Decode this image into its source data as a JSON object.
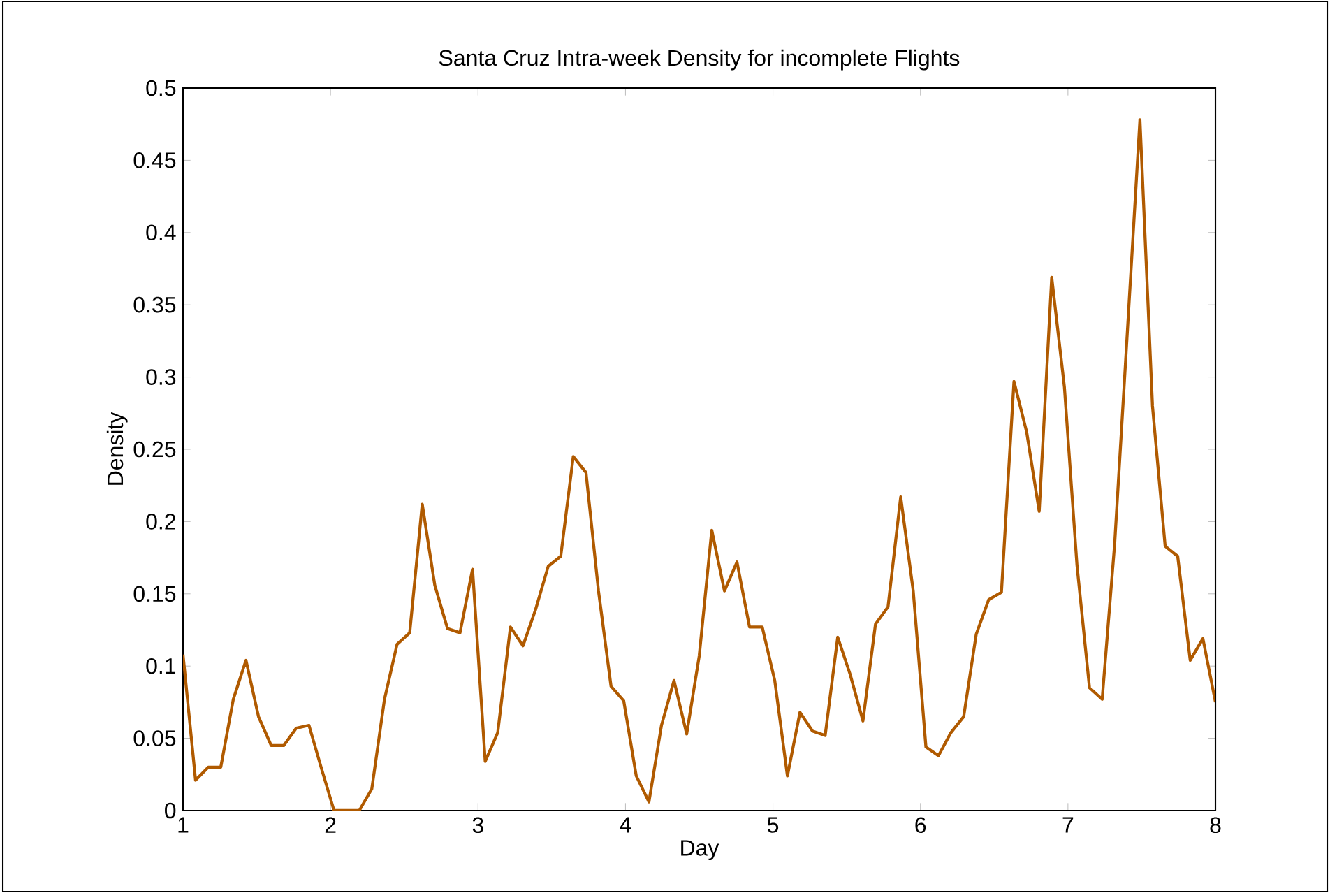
{
  "chart_data": {
    "type": "line",
    "title": "Santa Cruz Intra-week Density for incomplete Flights",
    "xlabel": "Day",
    "ylabel": "Density",
    "xlim": [
      1,
      8
    ],
    "xticks": [
      1,
      2,
      3,
      4,
      5,
      6,
      7,
      8
    ],
    "ylim": [
      0,
      0.5
    ],
    "yticks": [
      0,
      0.05,
      0.1,
      0.15,
      0.2,
      0.25,
      0.3,
      0.35,
      0.4,
      0.45,
      0.5
    ],
    "line_style": "solid",
    "x": [
      1,
      1.085,
      1.171,
      1.256,
      1.341,
      1.427,
      1.512,
      1.598,
      1.683,
      1.768,
      1.854,
      1.939,
      2.024,
      2.11,
      2.195,
      2.28,
      2.366,
      2.451,
      2.537,
      2.622,
      2.707,
      2.793,
      2.878,
      2.963,
      3.049,
      3.134,
      3.22,
      3.305,
      3.39,
      3.476,
      3.561,
      3.646,
      3.732,
      3.817,
      3.902,
      3.988,
      4.073,
      4.159,
      4.244,
      4.329,
      4.415,
      4.5,
      4.585,
      4.671,
      4.756,
      4.841,
      4.927,
      5.012,
      5.098,
      5.183,
      5.268,
      5.354,
      5.439,
      5.524,
      5.61,
      5.695,
      5.78,
      5.866,
      5.951,
      6.037,
      6.122,
      6.207,
      6.293,
      6.378,
      6.463,
      6.549,
      6.634,
      6.72,
      6.805,
      6.89,
      6.976,
      7.061,
      7.146,
      7.232,
      7.317,
      7.402,
      7.488,
      7.573,
      7.659,
      7.744,
      7.829,
      7.915,
      8
    ],
    "series": [
      {
        "color": "#b05a00",
        "values": [
          0.108,
          0.021,
          0.03,
          0.03,
          0.077,
          0.104,
          0.065,
          0.045,
          0.045,
          0.057,
          0.059,
          0.029,
          0,
          0,
          0,
          0.015,
          0.077,
          0.115,
          0.123,
          0.212,
          0.156,
          0.126,
          0.123,
          0.167,
          0.034,
          0.054,
          0.127,
          0.114,
          0.139,
          0.169,
          0.176,
          0.245,
          0.234,
          0.152,
          0.086,
          0.076,
          0.024,
          0.006,
          0.059,
          0.09,
          0.053,
          0.107,
          0.194,
          0.152,
          0.172,
          0.127,
          0.127,
          0.09,
          0.024,
          0.068,
          0.055,
          0.052,
          0.12,
          0.094,
          0.062,
          0.129,
          0.141,
          0.217,
          0.152,
          0.044,
          0.038,
          0.054,
          0.065,
          0.122,
          0.146,
          0.151,
          0.297,
          0.262,
          0.207,
          0.369,
          0.293,
          0.17,
          0.085,
          0.077,
          0.185,
          0.33,
          0.478,
          0.28,
          0.183,
          0.176,
          0.104,
          0.119,
          0.075
        ]
      }
    ]
  }
}
